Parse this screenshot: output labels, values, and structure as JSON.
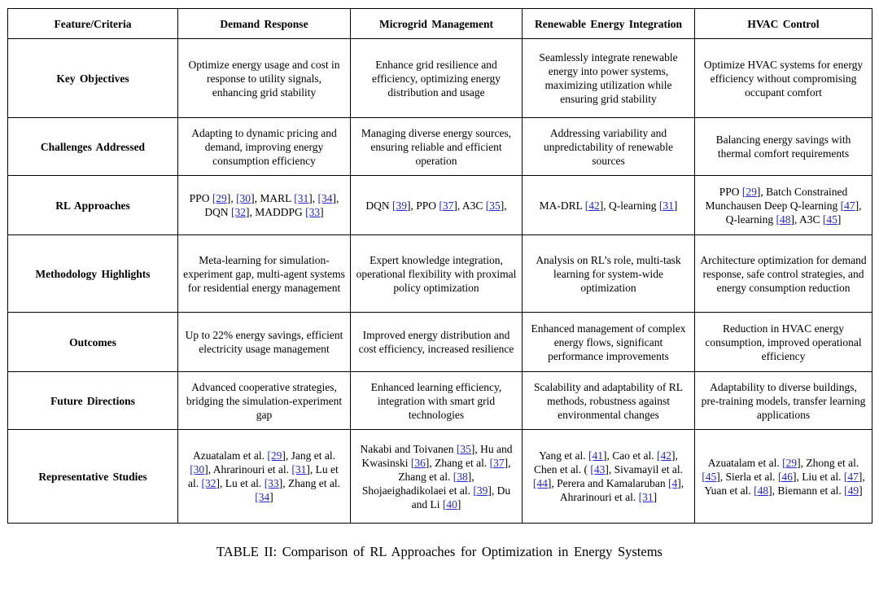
{
  "caption": "TABLE II: Comparison of RL Approaches for Optimization in Energy Systems",
  "colors": {
    "citation_blue": "#2525d0",
    "text": "#000000",
    "border": "#000000",
    "background": "#ffffff"
  },
  "table": {
    "columns": [
      "Feature/Criteria",
      "Demand Response",
      "Microgrid Management",
      "Renewable Energy Integration",
      "HVAC Control"
    ],
    "rows": [
      {
        "label": "Key Objectives",
        "cells": [
          "Optimize energy usage and cost in response to utility signals, enhancing grid stability",
          "Enhance grid resilience and efficiency, optimizing energy distribution and usage",
          "Seamlessly integrate renewable energy into power systems, maximizing utilization while ensuring grid stability",
          "Optimize HVAC systems for energy efficiency without compromising occupant comfort"
        ]
      },
      {
        "label": "Challenges Addressed",
        "cells": [
          "Adapting to dynamic pricing and demand, improving energy consumption efficiency",
          "Managing diverse energy sources, ensuring reliable and efficient operation",
          "Addressing variability and unpredictability of renewable sources",
          "Balancing energy savings with thermal comfort requirements"
        ]
      },
      {
        "label": "RL Approaches",
        "cells": [
          "PPO [[29]], [[30]], MARL [[31]], [[34]], DQN [[32]], MADDPG [[33]]",
          "DQN [[39]], PPO [[37]], A3C [[35]],",
          "MA-DRL [[42]], Q-learning [[31]]",
          "PPO [[29]], Batch Constrained Munchausen Deep Q-learning [[47]], Q-learning [[48]], A3C [[45]]"
        ]
      },
      {
        "label": "Methodology Highlights",
        "cells": [
          "Meta-learning for simulation-experiment gap, multi-agent systems for residential energy management",
          "Expert knowledge integration, operational flexibility with proximal policy optimization",
          "Analysis on RL’s role, multi-task learning for system-wide optimization",
          "Architecture optimization for demand response, safe control strategies, and energy consumption reduction"
        ]
      },
      {
        "label": "Outcomes",
        "cells": [
          "Up to 22% energy savings, efficient electricity usage management",
          "Improved energy distribution and cost efficiency, increased resilience",
          "Enhanced management of complex energy flows, significant performance improvements",
          "Reduction in HVAC energy consumption, improved operational efficiency"
        ]
      },
      {
        "label": "Future Directions",
        "cells": [
          "Advanced cooperative strategies, bridging the simulation-experiment gap",
          "Enhanced learning efficiency, integration with smart grid technologies",
          "Scalability and adaptability of RL methods, robustness against environmental changes",
          "Adaptability to diverse buildings, pre-training models, transfer learning applications"
        ]
      },
      {
        "label": "Representative Studies",
        "cells": [
          "Azuatalam et al. [[29]], Jang et al. [[30]], Ahrarinouri et al. [[31]], Lu et al. [[32]], Lu et al. [[33]], Zhang et al. [[34]]",
          "Nakabi and Toivanen [[35]], Hu and Kwasinski [[36]], Zhang et al. [[37]], Zhang et al. [[38]], Shojaeighadikolaei et al. [[39]], Du and Li [[40]]",
          "Yang et al. [[41]], Cao et al. [[42]], Chen et al. ( [[43]], Sivamayil et al. [[44]], Perera and Kamalaruban [[4]], Ahrarinouri et al. [[31]]",
          "Azuatalam et al. [[29]], Zhong et al. [[45]], Sierla et al. [[46]], Liu et al. [[47]], Yuan et al. [[48]], Biemann et al. [[49]]"
        ]
      }
    ]
  }
}
